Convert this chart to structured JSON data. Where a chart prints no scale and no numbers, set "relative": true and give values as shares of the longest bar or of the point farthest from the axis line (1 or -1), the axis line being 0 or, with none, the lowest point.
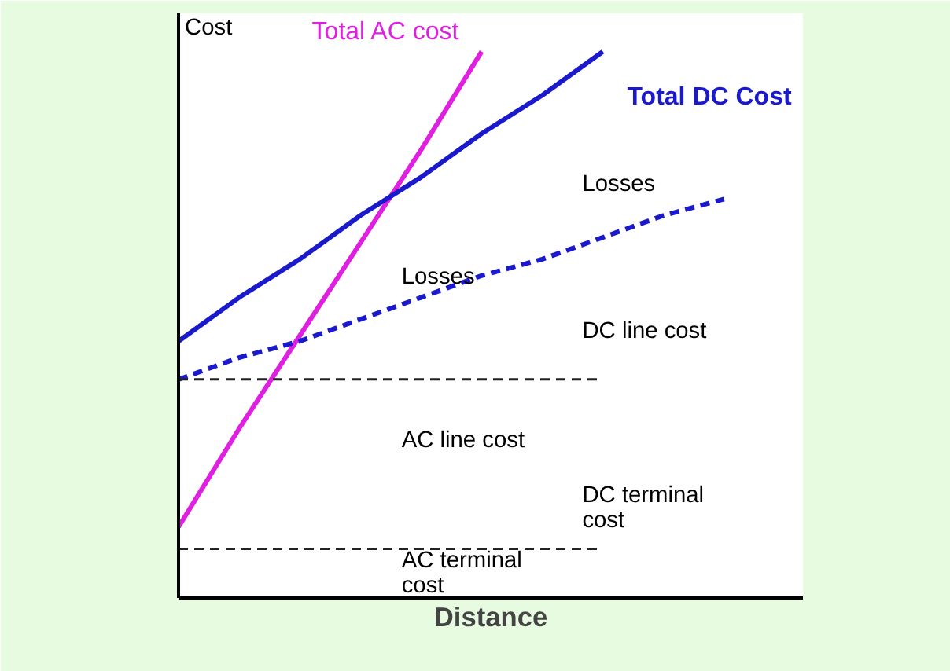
{
  "chart_data": {
    "type": "line",
    "relative": true,
    "xlabel": "Distance",
    "ylabel": "Cost",
    "categories": [
      null,
      null,
      null,
      null,
      null,
      null,
      null,
      null,
      null,
      null
    ],
    "series": [
      {
        "name": "Total AC cost",
        "color": "#e020e0",
        "values": [
          0.13,
          0.31,
          0.48,
          0.65,
          0.82,
          1.0,
          null,
          null,
          null,
          null
        ]
      },
      {
        "name": "Total DC Cost",
        "color": "#1a1acc",
        "values": [
          0.47,
          0.55,
          0.62,
          0.7,
          0.77,
          0.85,
          0.92,
          1.0,
          null,
          null
        ]
      },
      {
        "color": "#1a1acc",
        "line_style": "dashed",
        "values": [
          0.4,
          0.44,
          0.47,
          0.51,
          0.55,
          0.59,
          0.62,
          0.66,
          0.7,
          0.73
        ]
      }
    ],
    "ref_lines": [
      {
        "axis": "y",
        "value": 0.4,
        "color": "#222222",
        "line_style": "dashed"
      },
      {
        "axis": "y",
        "value": 0.09,
        "color": "#222222",
        "line_style": "dashed"
      }
    ],
    "annotations": [
      "Losses",
      "Losses",
      "DC line cost",
      "AC line cost",
      "DC terminal\ncost",
      "AC terminal\ncost"
    ],
    "grid": false,
    "legend": false,
    "marker": "none"
  }
}
